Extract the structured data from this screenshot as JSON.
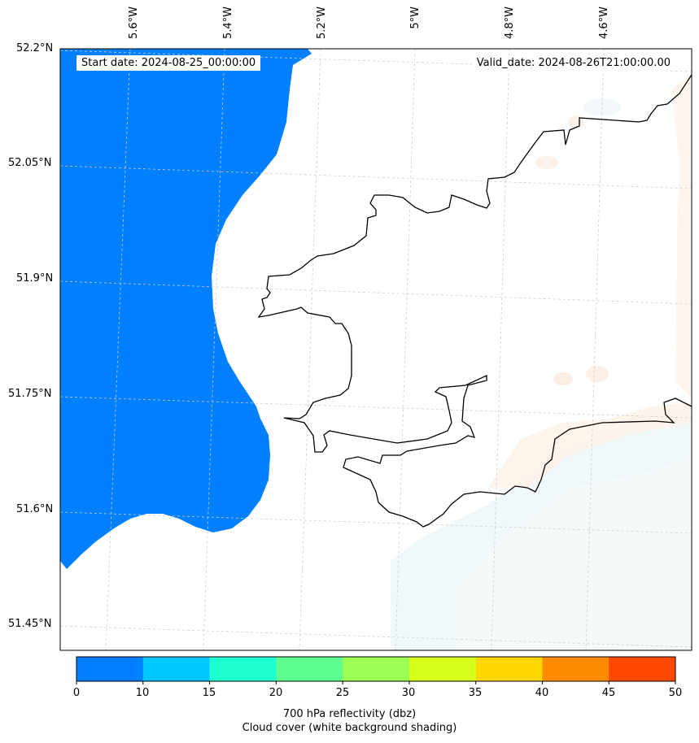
{
  "map": {
    "start_date": "Start date: 2024-08-25_00:00:00",
    "valid_date": "Valid_date: 2024-08-26T21:00:00.00",
    "lon_labels": [
      "5.6°W",
      "5.4°W",
      "5.2°W",
      "5°W",
      "4.8°W",
      "4.6°W"
    ],
    "lat_labels": [
      "52.2°N",
      "52.05°N",
      "51.9°N",
      "51.75°N",
      "51.6°N",
      "51.45°N"
    ]
  },
  "colorbar": {
    "ticks": [
      "0",
      "10",
      "15",
      "20",
      "25",
      "30",
      "35",
      "40",
      "45",
      "50"
    ],
    "colors": [
      "#0080ff",
      "#00c8ff",
      "#1effd2",
      "#5eff8f",
      "#9cff54",
      "#d7ff1e",
      "#ffd700",
      "#ff8c00",
      "#ff4800"
    ],
    "title_line1": "700 hPa reflectivity (dbz)",
    "title_line2": "Cloud cover (white background shading)"
  },
  "colors": {
    "reflectivity_field": "#0080ff",
    "coastline": "#000000",
    "gridline": "#cccccc"
  }
}
